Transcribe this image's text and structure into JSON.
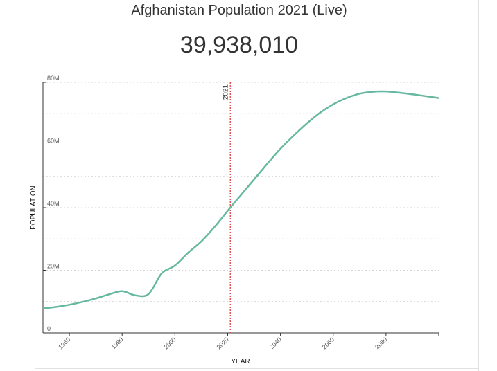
{
  "header": {
    "title": "Afghanistan Population 2021 (Live)",
    "live_count": "39,938,010"
  },
  "chart_data": {
    "type": "line",
    "xlabel": "YEAR",
    "ylabel": "POPULATION",
    "xlim": [
      1950,
      2100
    ],
    "ylim": [
      0,
      80000000
    ],
    "x_ticks": [
      1960,
      1980,
      2000,
      2020,
      2040,
      2060,
      2080
    ],
    "y_ticks": [
      {
        "value": 0,
        "label": "0"
      },
      {
        "value": 20000000,
        "label": "20M"
      },
      {
        "value": 40000000,
        "label": "40M"
      },
      {
        "value": 60000000,
        "label": "60M"
      },
      {
        "value": 80000000,
        "label": "80M"
      }
    ],
    "grid": true,
    "marker": {
      "x": 2021,
      "label": "2021",
      "color": "#e05555"
    },
    "series": [
      {
        "color": "#66b8a0",
        "x": [
          1950,
          1955,
          1960,
          1965,
          1970,
          1975,
          1980,
          1985,
          1990,
          1995,
          2000,
          2005,
          2010,
          2015,
          2020,
          2025,
          2030,
          2035,
          2040,
          2045,
          2050,
          2055,
          2060,
          2065,
          2070,
          2075,
          2080,
          2085,
          2090,
          2095,
          2100
        ],
        "y": [
          7800000,
          8300000,
          9000000,
          9900000,
          11000000,
          12300000,
          13300000,
          12000000,
          12400000,
          19000000,
          21500000,
          25600000,
          29200000,
          33800000,
          39000000,
          44000000,
          49000000,
          54000000,
          58800000,
          63000000,
          66900000,
          70300000,
          73000000,
          75000000,
          76400000,
          77000000,
          77100000,
          76700000,
          76200000,
          75600000,
          75000000
        ]
      }
    ]
  }
}
